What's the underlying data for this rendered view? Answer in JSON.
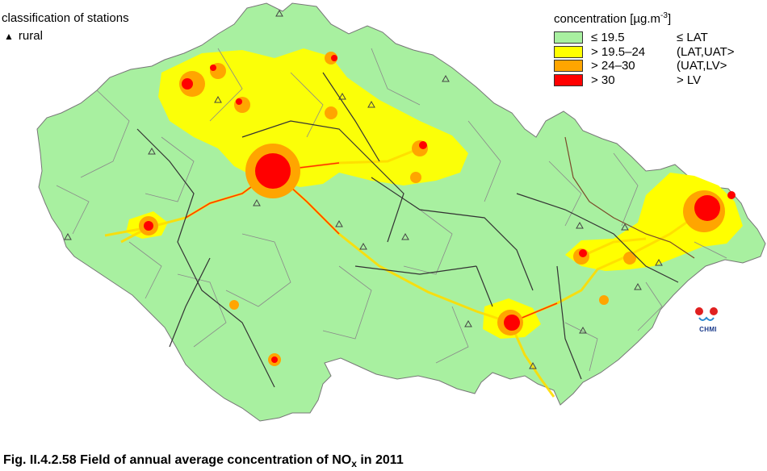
{
  "map": {
    "colors": {
      "background": "#ffffff",
      "class1": "#a8f0a0",
      "class2": "#ffff00",
      "class3": "#ffa500",
      "class4": "#ff0000",
      "borders_district": "#8a8a8a",
      "borders_region": "#333333",
      "borders_moravia": "#7a4a2a"
    },
    "station_marker_icon": "triangle-outline-icon"
  },
  "station_legend": {
    "title": "classification of stations",
    "symbol": "▲",
    "label": "rural"
  },
  "legend": {
    "title_prefix": "concentration [µg.m",
    "title_exp": "-3",
    "title_suffix": "]",
    "items": [
      {
        "range": "≤ 19.5",
        "class": "≤ LAT",
        "color": "#a8f0a0"
      },
      {
        "range": "> 19.5–24",
        "class": "(LAT,UAT>",
        "color": "#ffff00"
      },
      {
        "range": "> 24–30",
        "class": "(UAT,LV>",
        "color": "#ffa500"
      },
      {
        "range": "> 30",
        "class": "> LV",
        "color": "#ff0000"
      }
    ]
  },
  "logo": {
    "text": "CHMI"
  },
  "caption": {
    "prefix": "Fig. II.4.2.58  Field of annual average concentration of NO",
    "sub": "x",
    "suffix": " in 2011"
  }
}
